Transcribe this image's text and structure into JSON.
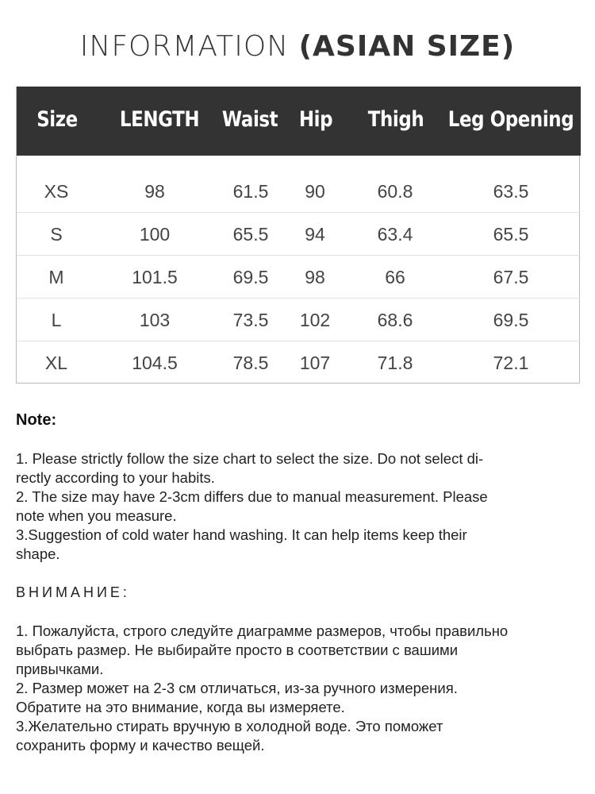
{
  "title": {
    "prefix": "INFORMATION ",
    "bold": "(ASIAN SIZE)"
  },
  "table": {
    "headers": [
      "Size",
      "LENGTH",
      "Waist",
      "Hip",
      "Thigh",
      "Leg Opening"
    ],
    "rows": [
      [
        "XS",
        "98",
        "61.5",
        "90",
        "60.8",
        "63.5"
      ],
      [
        "S",
        "100",
        "65.5",
        "94",
        "63.4",
        "65.5"
      ],
      [
        "M",
        "101.5",
        "69.5",
        "98",
        "66",
        "67.5"
      ],
      [
        "L",
        "103",
        "73.5",
        "102",
        "68.6",
        "69.5"
      ],
      [
        "XL",
        "104.5",
        "78.5",
        "107",
        "71.8",
        "72.1"
      ]
    ]
  },
  "note": {
    "heading": "Note:",
    "lines": [
      "1. Please strictly follow the size chart  to select the size. Do not select di-",
      "rectly according to your habits.",
      "2. The size may have 2-3cm differs due to manual measurement. Please",
      "note when you measure.",
      "3.Suggestion of cold water hand washing. It can help items keep their",
      "shape."
    ]
  },
  "ru_note": {
    "heading": "ВНИМАНИЕ:",
    "lines": [
      "1. Пожалуйста, строго следуйте диаграмме размеров, чтобы правильно",
      "выбрать размер. Не выбирайте просто в соответствии с вашими",
      "привычками.",
      "2. Размер может на 2-3 см отличаться, из-за ручного измерения.",
      "Обратите на это внимание, когда вы измеряете.",
      "3.Желательно стирать вручную в холодной воде. Это поможет",
      "сохранить форму и качество вещей."
    ]
  }
}
